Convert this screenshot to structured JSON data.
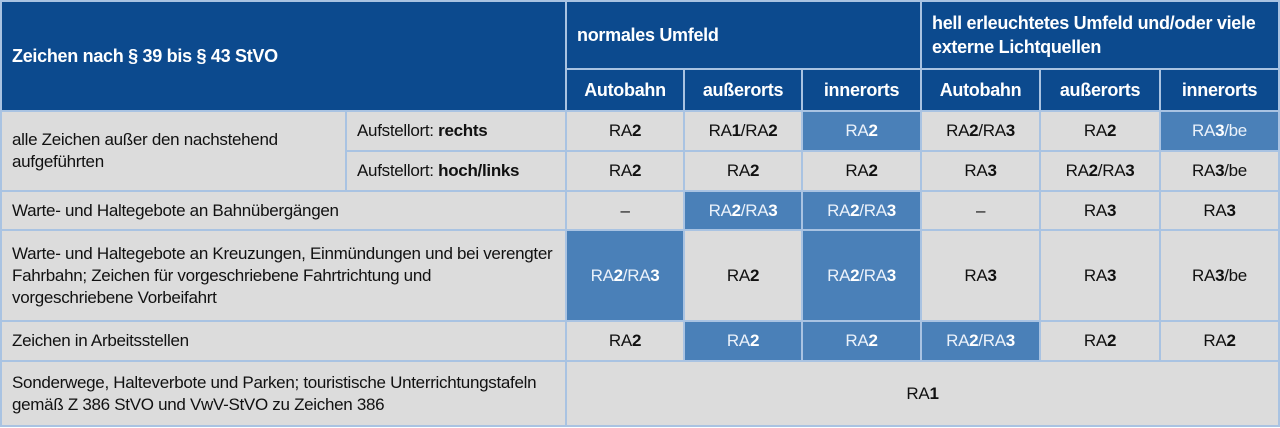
{
  "header": {
    "signs": "Zeichen nach § 39 bis § 43 StVO",
    "group_normal": "normales Umfeld",
    "group_bright": "hell erleuchtetes Umfeld und/oder viele externe Lichtquellen",
    "subcols": [
      "Autobahn",
      "außerorts",
      "innerorts",
      "Autobahn",
      "außerorts",
      "innerorts"
    ]
  },
  "colors": {
    "header": "#0c4a8e",
    "highlight": "#4a80b8",
    "cell": "#dcdcdc",
    "border": "#a9c3e2"
  },
  "rows": [
    {
      "label": "alle Zeichen außer den nachstehend aufgeführten",
      "sub_prefix": "Aufstellort: ",
      "sub_bold": "rechts",
      "cells": [
        {
          "v": "RA2"
        },
        {
          "v": "RA1/RA2"
        },
        {
          "v": "RA2",
          "hl": true
        },
        {
          "v": "RA2/RA3"
        },
        {
          "v": "RA2"
        },
        {
          "v": "RA3/be",
          "hl": true
        }
      ]
    },
    {
      "label": null,
      "sub_prefix": "Aufstellort: ",
      "sub_bold": "hoch/links",
      "cells": [
        {
          "v": "RA2"
        },
        {
          "v": "RA2"
        },
        {
          "v": "RA2"
        },
        {
          "v": "RA3"
        },
        {
          "v": "RA2/RA3"
        },
        {
          "v": "RA3/be"
        }
      ]
    },
    {
      "label": "Warte- und Haltegebote an Bahnübergängen",
      "cells": [
        {
          "v": "–"
        },
        {
          "v": "RA2/RA3",
          "hl": true
        },
        {
          "v": "RA2/RA3",
          "hl": true
        },
        {
          "v": "–"
        },
        {
          "v": "RA3"
        },
        {
          "v": "RA3"
        }
      ]
    },
    {
      "label": "Warte- und Haltegebote an Kreuzungen, Einmündungen und bei verengter Fahrbahn; Zeichen für vorgeschriebene Fahrtrichtung und vorgeschriebene Vorbeifahrt",
      "cells": [
        {
          "v": "RA2/RA3",
          "hl": true
        },
        {
          "v": "RA2"
        },
        {
          "v": "RA2/RA3",
          "hl": true
        },
        {
          "v": "RA3"
        },
        {
          "v": "RA3"
        },
        {
          "v": "RA3/be"
        }
      ]
    },
    {
      "label": "Zeichen in Arbeitsstellen",
      "cells": [
        {
          "v": "RA2"
        },
        {
          "v": "RA2",
          "hl": true
        },
        {
          "v": "RA2",
          "hl": true
        },
        {
          "v": "RA2/RA3",
          "hl": true
        },
        {
          "v": "RA2"
        },
        {
          "v": "RA2"
        }
      ]
    },
    {
      "label": "Sonderwege, Halteverbote und Parken; touristische Unterrichtungstafeln gemäß Z 386 StVO und VwV-StVO zu Zeichen 386",
      "merged": "RA1"
    }
  ]
}
